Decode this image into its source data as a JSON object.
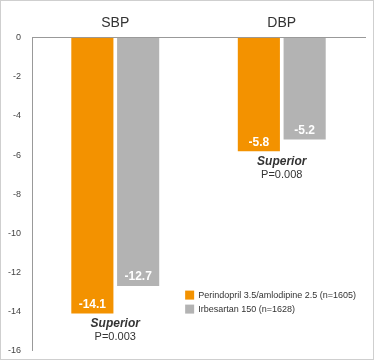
{
  "chart_data": {
    "type": "bar",
    "categories": [
      "SBP",
      "DBP"
    ],
    "series": [
      {
        "name": "Perindopril 3.5/amlodipine 2.5 (n=1605)",
        "color": "#f39200",
        "values": [
          -14.1,
          -5.8
        ]
      },
      {
        "name": "Irbesartan 150 (n=1628)",
        "color": "#b3b3b3",
        "values": [
          -12.7,
          -5.2
        ]
      }
    ],
    "ylim": [
      -16,
      0
    ],
    "yticks": [
      -16,
      -14,
      -12,
      -10,
      -8,
      -6,
      -4,
      -2,
      0
    ],
    "grid": false,
    "legend": "lower right",
    "data_labels": true,
    "annotations": [
      {
        "category": "SBP",
        "lines": [
          "Superior",
          "P=0.003"
        ]
      },
      {
        "category": "DBP",
        "lines": [
          "Superior",
          "P=0.008"
        ]
      }
    ]
  }
}
